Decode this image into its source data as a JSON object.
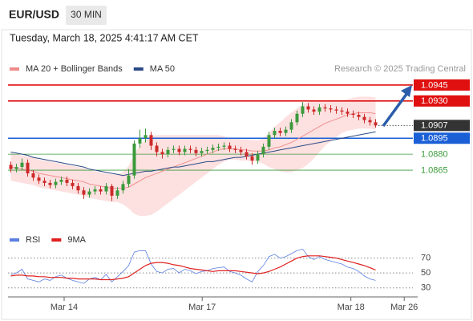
{
  "header": {
    "symbol": "EUR/USD",
    "interval": "30 MIN",
    "timestamp": "Tuesday, March 18, 2025 4:41:17 AM CET"
  },
  "chart_data": [
    {
      "type": "candlestick",
      "source": "Research © 2025 Trading Central",
      "ylim": [
        1.081,
        1.0957
      ],
      "xlim": [
        0,
        73
      ],
      "candle_colors": {
        "up": "#3c9a3c",
        "down": "#cc2a2a"
      },
      "candles": [
        [
          1.087,
          1.0873,
          1.0863,
          1.0866
        ],
        [
          1.0866,
          1.0871,
          1.0863,
          1.0868
        ],
        [
          1.0868,
          1.0876,
          1.0865,
          1.0872
        ],
        [
          1.0872,
          1.0875,
          1.0859,
          1.0862
        ],
        [
          1.0862,
          1.0865,
          1.0855,
          1.0858
        ],
        [
          1.0858,
          1.0861,
          1.0852,
          1.0855
        ],
        [
          1.0855,
          1.0858,
          1.085,
          1.0853
        ],
        [
          1.0853,
          1.0856,
          1.0848,
          1.0851
        ],
        [
          1.0851,
          1.0857,
          1.0848,
          1.0854
        ],
        [
          1.0854,
          1.0859,
          1.0851,
          1.0856
        ],
        [
          1.0856,
          1.0859,
          1.085,
          1.0853
        ],
        [
          1.0853,
          1.0856,
          1.0847,
          1.085
        ],
        [
          1.085,
          1.0853,
          1.0843,
          1.0846
        ],
        [
          1.0846,
          1.0849,
          1.0838,
          1.0842
        ],
        [
          1.0842,
          1.0848,
          1.0839,
          1.0845
        ],
        [
          1.0845,
          1.085,
          1.0842,
          1.0847
        ],
        [
          1.0847,
          1.085,
          1.0842,
          1.0845
        ],
        [
          1.0845,
          1.0853,
          1.0842,
          1.085
        ],
        [
          1.085,
          1.0852,
          1.0836,
          1.0841
        ],
        [
          1.0841,
          1.0849,
          1.0838,
          1.0846
        ],
        [
          1.0846,
          1.0855,
          1.0843,
          1.0852
        ],
        [
          1.0852,
          1.0866,
          1.0849,
          1.086
        ],
        [
          1.086,
          1.0893,
          1.0857,
          1.089
        ],
        [
          1.089,
          1.0903,
          1.0886,
          1.0895
        ],
        [
          1.0895,
          1.0904,
          1.0891,
          1.0898
        ],
        [
          1.0898,
          1.0901,
          1.0884,
          1.0888
        ],
        [
          1.0888,
          1.0891,
          1.0878,
          1.0882
        ],
        [
          1.0882,
          1.0885,
          1.0876,
          1.088
        ],
        [
          1.088,
          1.0887,
          1.0877,
          1.0884
        ],
        [
          1.0884,
          1.0888,
          1.0881,
          1.0885
        ],
        [
          1.0885,
          1.0888,
          1.0879,
          1.0882
        ],
        [
          1.0882,
          1.0888,
          1.0879,
          1.0885
        ],
        [
          1.0885,
          1.0888,
          1.0881,
          1.0884
        ],
        [
          1.0884,
          1.0887,
          1.0878,
          1.0881
        ],
        [
          1.0881,
          1.0886,
          1.0878,
          1.0883
        ],
        [
          1.0883,
          1.0887,
          1.088,
          1.0884
        ],
        [
          1.0884,
          1.0889,
          1.0881,
          1.0886
        ],
        [
          1.0886,
          1.089,
          1.0883,
          1.0887
        ],
        [
          1.0887,
          1.0891,
          1.0884,
          1.0888
        ],
        [
          1.0888,
          1.0891,
          1.0882,
          1.0885
        ],
        [
          1.0885,
          1.0888,
          1.0881,
          1.0884
        ],
        [
          1.0884,
          1.0887,
          1.0879,
          1.0882
        ],
        [
          1.0882,
          1.0885,
          1.0875,
          1.0878
        ],
        [
          1.0878,
          1.0881,
          1.087,
          1.0874
        ],
        [
          1.0874,
          1.0883,
          1.0871,
          1.088
        ],
        [
          1.088,
          1.089,
          1.0877,
          1.0887
        ],
        [
          1.0887,
          1.0901,
          1.0884,
          1.0898
        ],
        [
          1.0898,
          1.0905,
          1.0895,
          1.0902
        ],
        [
          1.0902,
          1.0905,
          1.0897,
          1.09
        ],
        [
          1.09,
          1.0906,
          1.0897,
          1.0903
        ],
        [
          1.0903,
          1.0913,
          1.09,
          1.091
        ],
        [
          1.091,
          1.0921,
          1.0907,
          1.0918
        ],
        [
          1.0918,
          1.0929,
          1.0915,
          1.0925
        ],
        [
          1.0925,
          1.0928,
          1.0919,
          1.0922
        ],
        [
          1.0922,
          1.0925,
          1.0917,
          1.092
        ],
        [
          1.092,
          1.0927,
          1.0917,
          1.0924
        ],
        [
          1.0924,
          1.0927,
          1.092,
          1.0923
        ],
        [
          1.0923,
          1.0926,
          1.0919,
          1.0922
        ],
        [
          1.0922,
          1.0925,
          1.0918,
          1.0921
        ],
        [
          1.0921,
          1.0924,
          1.0917,
          1.092
        ],
        [
          1.092,
          1.0923,
          1.0915,
          1.0918
        ],
        [
          1.0918,
          1.0921,
          1.0914,
          1.0917
        ],
        [
          1.0917,
          1.092,
          1.0912,
          1.0915
        ],
        [
          1.0915,
          1.0918,
          1.0909,
          1.0912
        ],
        [
          1.0912,
          1.0915,
          1.0907,
          1.091
        ],
        [
          1.091,
          1.0913,
          1.0905,
          1.0907
        ]
      ],
      "series": [
        {
          "name": "MA 20 + Bollinger Bands",
          "color": "#f08a8a",
          "band_color": "#fde0e0",
          "values": [
            1.0868,
            1.0867,
            1.0866,
            1.0865,
            1.0864,
            1.0862,
            1.0861,
            1.086,
            1.0859,
            1.0858,
            1.0857,
            1.0856,
            1.0855,
            1.0854,
            1.0852,
            1.0851,
            1.085,
            1.0849,
            1.0848,
            1.0848,
            1.0848,
            1.0849,
            1.0852,
            1.0855,
            1.0858,
            1.086,
            1.0862,
            1.0864,
            1.0866,
            1.0868,
            1.087,
            1.0872,
            1.0874,
            1.0876,
            1.0878,
            1.088,
            1.0882,
            1.0884,
            1.0885,
            1.0885,
            1.0885,
            1.0884,
            1.0884,
            1.0883,
            1.0883,
            1.0883,
            1.0884,
            1.0886,
            1.0887,
            1.0889,
            1.0891,
            1.0894,
            1.0897,
            1.09,
            1.0903,
            1.0906,
            1.0909,
            1.0911,
            1.0913,
            1.0915,
            1.0917,
            1.0918,
            1.0919,
            1.0919,
            1.0919,
            1.0918
          ],
          "upper": [
            1.0881,
            1.088,
            1.0879,
            1.0878,
            1.0877,
            1.0875,
            1.0874,
            1.0873,
            1.0872,
            1.0871,
            1.087,
            1.0869,
            1.0868,
            1.0867,
            1.0865,
            1.0864,
            1.0863,
            1.0862,
            1.0861,
            1.0861,
            1.0863,
            1.0869,
            1.088,
            1.0888,
            1.0894,
            1.0897,
            1.0898,
            1.0898,
            1.0898,
            1.0898,
            1.0898,
            1.0898,
            1.0898,
            1.0898,
            1.0898,
            1.0898,
            1.0898,
            1.0898,
            1.0897,
            1.0895,
            1.0895,
            1.0894,
            1.0894,
            1.0893,
            1.0893,
            1.0895,
            1.09,
            1.0906,
            1.091,
            1.0915,
            1.0919,
            1.0923,
            1.0927,
            1.0929,
            1.093,
            1.093,
            1.093,
            1.093,
            1.093,
            1.093,
            1.0932,
            1.0933,
            1.0934,
            1.0934,
            1.0934,
            1.0933
          ],
          "lower": [
            1.0855,
            1.0854,
            1.0853,
            1.0852,
            1.0851,
            1.0849,
            1.0848,
            1.0847,
            1.0846,
            1.0845,
            1.0844,
            1.0843,
            1.0842,
            1.0841,
            1.0839,
            1.0838,
            1.0837,
            1.0836,
            1.0835,
            1.0835,
            1.0833,
            1.0829,
            1.0824,
            1.0822,
            1.0822,
            1.0823,
            1.0826,
            1.083,
            1.0834,
            1.0838,
            1.0842,
            1.0846,
            1.085,
            1.0854,
            1.0858,
            1.0862,
            1.0866,
            1.087,
            1.0873,
            1.0875,
            1.0875,
            1.0874,
            1.0874,
            1.0873,
            1.0873,
            1.0871,
            1.0868,
            1.0866,
            1.0864,
            1.0863,
            1.0863,
            1.0865,
            1.0867,
            1.0871,
            1.0876,
            1.0882,
            1.0888,
            1.0892,
            1.0896,
            1.09,
            1.0902,
            1.0903,
            1.0904,
            1.0904,
            1.0904,
            1.0903
          ]
        },
        {
          "name": "MA 50",
          "color": "#2b4a85",
          "values": [
            1.0882,
            1.0881,
            1.088,
            1.0879,
            1.0877,
            1.0876,
            1.0875,
            1.0874,
            1.0873,
            1.0872,
            1.0871,
            1.087,
            1.0869,
            1.0868,
            1.0866,
            1.0865,
            1.0864,
            1.0863,
            1.0862,
            1.0861,
            1.086,
            1.0861,
            1.0862,
            1.0863,
            1.0864,
            1.0864,
            1.0865,
            1.0866,
            1.0867,
            1.0868,
            1.0868,
            1.0869,
            1.087,
            1.0871,
            1.0872,
            1.0873,
            1.0873,
            1.0874,
            1.0875,
            1.0876,
            1.0877,
            1.0877,
            1.0878,
            1.0879,
            1.088,
            1.0881,
            1.0882,
            1.0883,
            1.0884,
            1.0885,
            1.0886,
            1.0887,
            1.0888,
            1.0889,
            1.089,
            1.0891,
            1.0892,
            1.0893,
            1.0894,
            1.0895,
            1.0896,
            1.0897,
            1.0898,
            1.0899,
            1.09,
            1.0901
          ]
        }
      ],
      "levels": [
        {
          "value": 1.0945,
          "color": "#e01010",
          "boxed": true
        },
        {
          "value": 1.093,
          "label": "1.0930",
          "color": "#e01010",
          "boxed": true
        },
        {
          "value": 1.0907,
          "color": "#333333",
          "boxed": true,
          "dotted": true
        },
        {
          "value": 1.0895,
          "color": "#1a5fd6",
          "boxed": true
        },
        {
          "value": 1.088,
          "label": "1.0880",
          "color": "#3a9a3a",
          "boxed": false
        },
        {
          "value": 1.0865,
          "color": "#3a9a3a",
          "boxed": false
        }
      ]
    },
    {
      "type": "line",
      "ylim": [
        20,
        90
      ],
      "yticks": [
        30,
        50,
        70
      ],
      "xlim": [
        0,
        73
      ],
      "xticks": [
        {
          "value": 10,
          "label": "Mar 14"
        },
        {
          "value": 34.6,
          "label": "Mar 17"
        },
        {
          "value": 61.1,
          "label": "Mar 18"
        },
        {
          "value": 70.6,
          "label": "Mar 26"
        }
      ],
      "series": [
        {
          "name": "RSI",
          "color": "#5b7fe0",
          "values": [
            48,
            50,
            55,
            42,
            40,
            38,
            42,
            40,
            45,
            47,
            43,
            40,
            38,
            36,
            42,
            44,
            41,
            48,
            38,
            45,
            52,
            60,
            78,
            80,
            80,
            62,
            52,
            50,
            55,
            56,
            50,
            55,
            53,
            49,
            52,
            53,
            56,
            57,
            58,
            52,
            50,
            47,
            42,
            38,
            52,
            60,
            72,
            75,
            70,
            72,
            76,
            80,
            82,
            72,
            68,
            72,
            68,
            66,
            64,
            62,
            58,
            56,
            52,
            46,
            42,
            40
          ]
        },
        {
          "name": "9MA",
          "color": "#e02020",
          "values": [
            46,
            47,
            47,
            46,
            46,
            45,
            45,
            44,
            44,
            44,
            43,
            43,
            42,
            42,
            42,
            42,
            41,
            41,
            41,
            42,
            43,
            45,
            50,
            55,
            60,
            63,
            64,
            64,
            63,
            61,
            60,
            58,
            56,
            55,
            54,
            53,
            52,
            53,
            53,
            53,
            53,
            52,
            51,
            50,
            49,
            50,
            52,
            55,
            58,
            62,
            66,
            70,
            72,
            73,
            73,
            73,
            72,
            71,
            70,
            68,
            66,
            64,
            62,
            60,
            57,
            54
          ]
        }
      ]
    }
  ]
}
